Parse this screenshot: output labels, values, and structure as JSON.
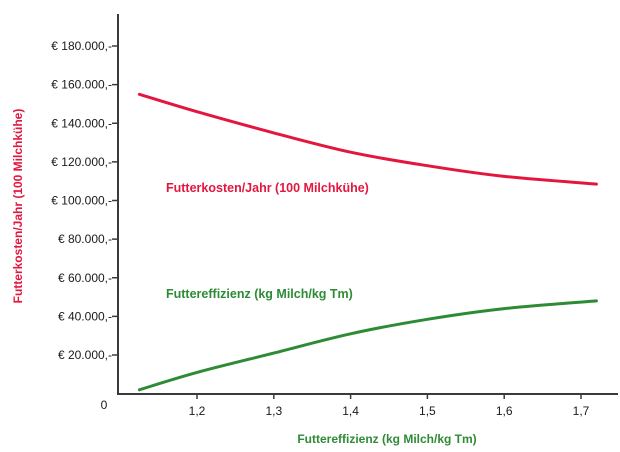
{
  "chart_data": {
    "type": "line",
    "title": "",
    "xlabel": "Futtereffizienz (kg Milch/kg Tm)",
    "ylabel": "Futterkosten/Jahr (100 Milchkühe)",
    "xlim": [
      1.08,
      1.75
    ],
    "ylim": [
      0,
      190000
    ],
    "x_ticks": [
      1.2,
      1.3,
      1.4,
      1.5,
      1.6,
      1.7
    ],
    "x_tick_labels": [
      "1,2",
      "1,3",
      "1,4",
      "1,5",
      "1,6",
      "1,7"
    ],
    "y_ticks": [
      20000,
      40000,
      60000,
      80000,
      100000,
      120000,
      140000,
      160000,
      180000
    ],
    "y_tick_labels": [
      "€  20.000,-",
      "€  40.000,-",
      "€  60.000,-",
      "€  80.000,-",
      "€ 100.000,-",
      "€ 120.000,-",
      "€ 140.000,-",
      "€ 160.000,-",
      "€ 180.000,-"
    ],
    "origin_label": "0",
    "grid": false,
    "legend": "inline",
    "series": [
      {
        "name": "Futterkosten/Jahr (100 Milchkühe)",
        "color": "#e3173e",
        "x": [
          1.125,
          1.2,
          1.3,
          1.4,
          1.5,
          1.6,
          1.72
        ],
        "values": [
          155000,
          146000,
          135000,
          125000,
          118000,
          112500,
          108500
        ]
      },
      {
        "name": "Futtereffizienz (kg Milch/kg Tm)",
        "color": "#2e8b35",
        "x": [
          1.125,
          1.2,
          1.3,
          1.4,
          1.5,
          1.6,
          1.72
        ],
        "values": [
          2000,
          11000,
          21000,
          31000,
          38500,
          44000,
          48000
        ]
      }
    ]
  }
}
